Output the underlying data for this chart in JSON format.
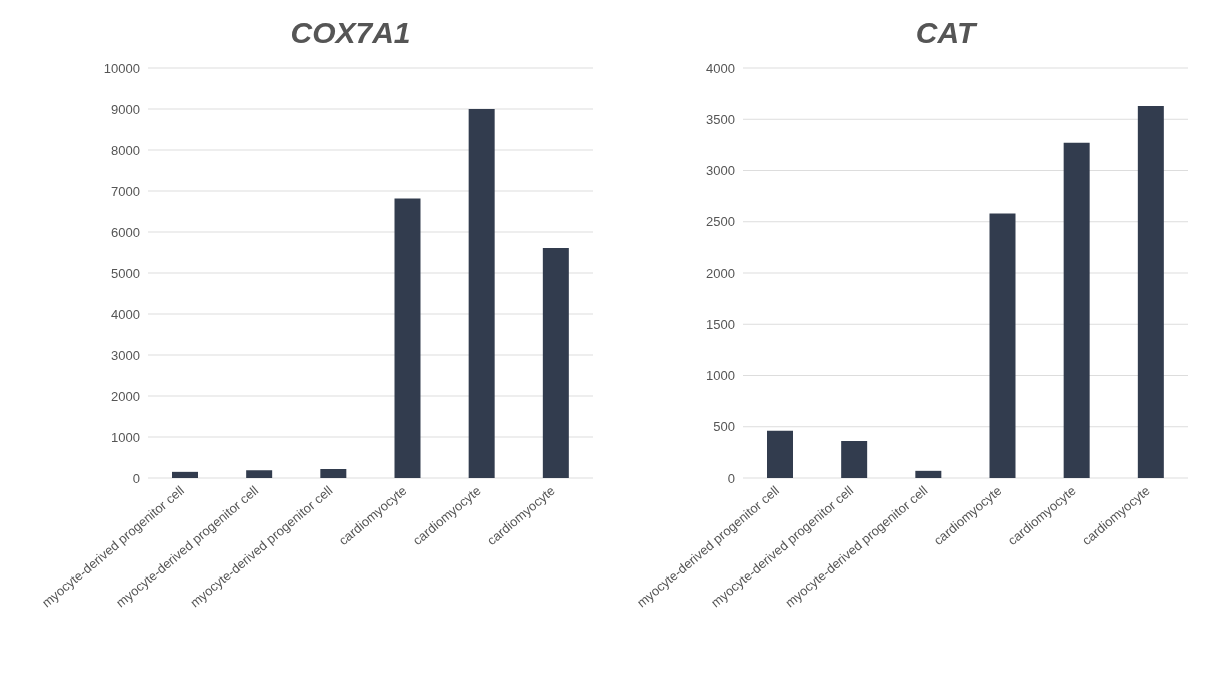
{
  "chart_data": [
    {
      "type": "bar",
      "title": "COX7A1",
      "categories": [
        "myocyte-derived progenitor cell",
        "myocyte-derived progenitor cell",
        "myocyte-derived progenitor cell",
        "cardiomyocyte",
        "cardiomyocyte",
        "cardiomyocyte"
      ],
      "values": [
        150,
        190,
        220,
        6820,
        9000,
        5610
      ],
      "color": "#323c4e",
      "ylim": [
        0,
        10000
      ],
      "yticks": [
        0,
        1000,
        2000,
        3000,
        4000,
        5000,
        6000,
        7000,
        8000,
        9000,
        10000
      ],
      "grid": "y"
    },
    {
      "type": "bar",
      "title": "CAT",
      "categories": [
        "myocyte-derived progenitor cell",
        "myocyte-derived progenitor cell",
        "myocyte-derived progenitor cell",
        "cardiomyocyte",
        "cardiomyocyte",
        "cardiomyocyte"
      ],
      "values": [
        460,
        360,
        70,
        2580,
        3270,
        3630
      ],
      "color": "#323c4e",
      "ylim": [
        0,
        4000
      ],
      "yticks": [
        0,
        500,
        1000,
        1500,
        2000,
        2500,
        3000,
        3500,
        4000
      ],
      "grid": "y"
    }
  ]
}
